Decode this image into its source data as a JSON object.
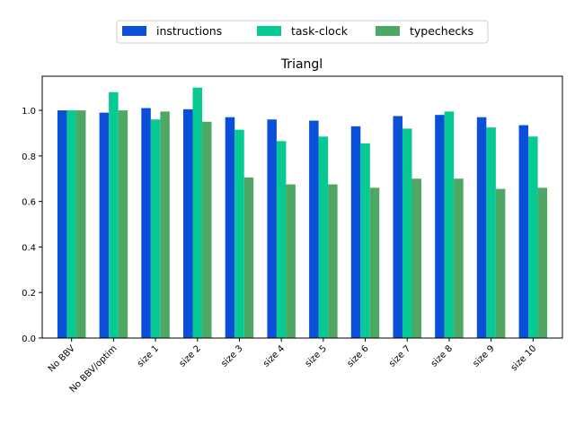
{
  "chart_data": {
    "type": "bar",
    "title": "Triangl",
    "xlabel": "",
    "ylabel": "",
    "ylim": [
      0,
      1.15
    ],
    "yticks": [
      0.0,
      0.2,
      0.4,
      0.6,
      0.8,
      1.0
    ],
    "ytick_labels": [
      "0.0",
      "0.2",
      "0.4",
      "0.6",
      "0.8",
      "1.0"
    ],
    "grid": false,
    "legend_position": "top-center",
    "categories": [
      "No BBV",
      "No BBV/optim",
      "size 1",
      "size 2",
      "size 3",
      "size 4",
      "size 5",
      "size 6",
      "size 7",
      "size 8",
      "size 9",
      "size 10"
    ],
    "series": [
      {
        "name": "instructions",
        "color": "#0a4fd8",
        "values": [
          1.0,
          0.99,
          1.01,
          1.005,
          0.97,
          0.96,
          0.955,
          0.93,
          0.975,
          0.98,
          0.97,
          0.935
        ]
      },
      {
        "name": "task-clock",
        "color": "#06c994",
        "values": [
          1.0,
          1.08,
          0.96,
          1.1,
          0.915,
          0.865,
          0.885,
          0.855,
          0.92,
          0.995,
          0.925,
          0.885
        ]
      },
      {
        "name": "typechecks",
        "color": "#4ea864",
        "values": [
          1.0,
          1.0,
          0.995,
          0.95,
          0.705,
          0.675,
          0.675,
          0.66,
          0.7,
          0.7,
          0.655,
          0.66
        ]
      }
    ]
  }
}
